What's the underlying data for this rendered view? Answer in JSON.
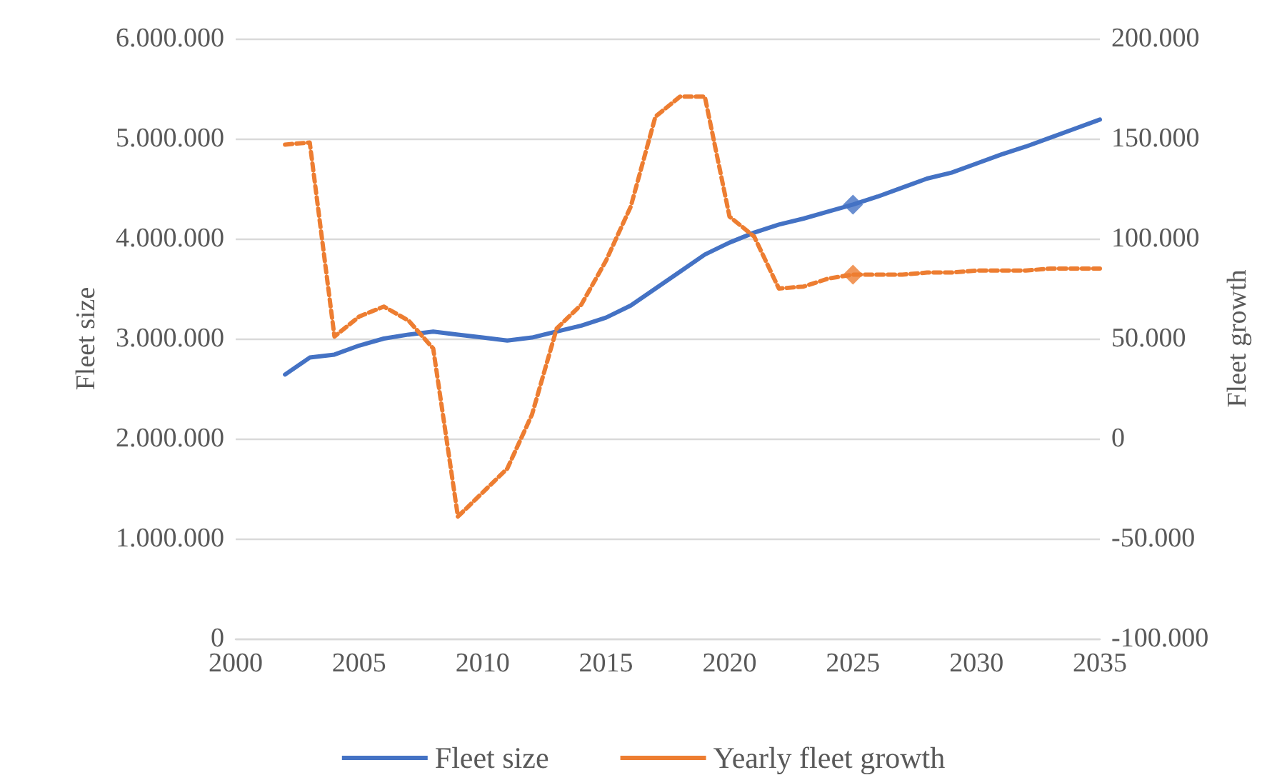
{
  "chart_data": {
    "type": "line",
    "xlabel": null,
    "ylabel": "Fleet size",
    "y2label": "Fleet growth",
    "grid": "y",
    "legend": "bottom",
    "marker": "none",
    "x": [
      2002,
      2003,
      2004,
      2005,
      2006,
      2007,
      2008,
      2009,
      2010,
      2011,
      2012,
      2013,
      2014,
      2015,
      2016,
      2017,
      2018,
      2019,
      2020,
      2021,
      2022,
      2023,
      2024,
      2025,
      2026,
      2027,
      2028,
      2029,
      2030,
      2031,
      2032,
      2033,
      2034,
      2035
    ],
    "xlim": [
      2000,
      2035
    ],
    "xticks": [
      2000,
      2005,
      2010,
      2015,
      2020,
      2025,
      2030,
      2035
    ],
    "ylim": [
      0,
      6000000
    ],
    "yticks": [
      {
        "value": 0,
        "label": "0"
      },
      {
        "value": 1000000,
        "label": "1.000.000"
      },
      {
        "value": 2000000,
        "label": "2.000.000"
      },
      {
        "value": 3000000,
        "label": "3.000.000"
      },
      {
        "value": 4000000,
        "label": "4.000.000"
      },
      {
        "value": 5000000,
        "label": "5.000.000"
      },
      {
        "value": 6000000,
        "label": "6.000.000"
      }
    ],
    "y2lim": [
      -100000,
      200000
    ],
    "y2ticks": [
      {
        "value": -100000,
        "label": "-100.000"
      },
      {
        "value": -50000,
        "label": "-50.000"
      },
      {
        "value": 0,
        "label": "0"
      },
      {
        "value": 50000,
        "label": "50.000"
      },
      {
        "value": 100000,
        "label": "100.000"
      },
      {
        "value": 150000,
        "label": "150.000"
      },
      {
        "value": 200000,
        "label": "200.000"
      }
    ],
    "series": [
      {
        "name": "Fleet size",
        "color": "#4472c4",
        "line_style": "solid",
        "values": [
          2640000,
          2810000,
          2840000,
          2930000,
          3000000,
          3040000,
          3070000,
          3040000,
          3010000,
          2980000,
          3010000,
          3070000,
          3130000,
          3210000,
          3330000,
          3500000,
          3670000,
          3840000,
          3960000,
          4060000,
          4140000,
          4200000,
          4270000,
          4340000,
          4420000,
          4510000,
          4600000,
          4660000,
          4750000,
          4840000,
          4920000,
          5010000,
          5100000,
          5190000
        ]
      },
      {
        "name": "Yearly fleet growth",
        "color": "#ed7d31",
        "line_style": "dashed",
        "axis": "y2",
        "values": [
          147000,
          148000,
          51000,
          61000,
          66000,
          59000,
          45000,
          -39000,
          -27000,
          -15000,
          12000,
          55000,
          67000,
          89000,
          116000,
          161000,
          171000,
          171000,
          111000,
          101000,
          75000,
          76000,
          80000,
          82000,
          82000,
          82000,
          83000,
          83000,
          84000,
          84000,
          84000,
          85000,
          85000,
          85000
        ]
      },
      {
        "type": "scatter",
        "marker": "diamond",
        "color": "#4472c4",
        "x": [
          2025
        ],
        "values": [
          4340000
        ]
      },
      {
        "type": "scatter",
        "marker": "diamond",
        "color": "#ed7d31",
        "axis": "y2",
        "x": [
          2025
        ],
        "values": [
          82000
        ]
      }
    ]
  }
}
